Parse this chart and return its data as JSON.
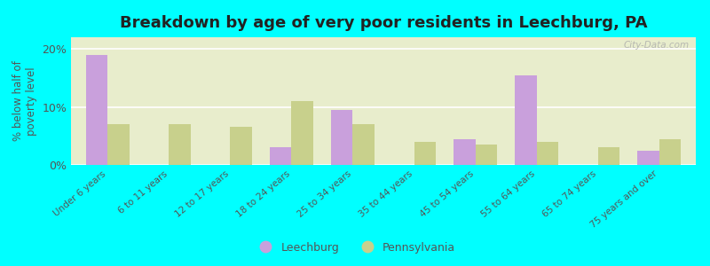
{
  "title": "Breakdown by age of very poor residents in Leechburg, PA",
  "ylabel": "% below half of\npoverty level",
  "categories": [
    "Under 6 years",
    "6 to 11 years",
    "12 to 17 years",
    "18 to 24 years",
    "25 to 34 years",
    "35 to 44 years",
    "45 to 54 years",
    "55 to 64 years",
    "65 to 74 years",
    "75 years and over"
  ],
  "leechburg": [
    19.0,
    0.0,
    0.0,
    3.0,
    9.5,
    0.0,
    4.5,
    15.5,
    0.0,
    2.5
  ],
  "pennsylvania": [
    7.0,
    7.0,
    6.5,
    11.0,
    7.0,
    4.0,
    3.5,
    4.0,
    3.0,
    4.5
  ],
  "leechburg_color": "#c9a0dc",
  "pennsylvania_color": "#c8d08c",
  "background_color": "#00ffff",
  "plot_bg_color": "#e8edcc",
  "ylim": [
    0,
    22
  ],
  "yticks": [
    0,
    10,
    20
  ],
  "ytick_labels": [
    "0%",
    "10%",
    "20%"
  ],
  "bar_width": 0.35,
  "title_fontsize": 13,
  "legend_labels": [
    "Leechburg",
    "Pennsylvania"
  ],
  "watermark": "City-Data.com",
  "tick_color": "#555555",
  "label_color": "#555555"
}
